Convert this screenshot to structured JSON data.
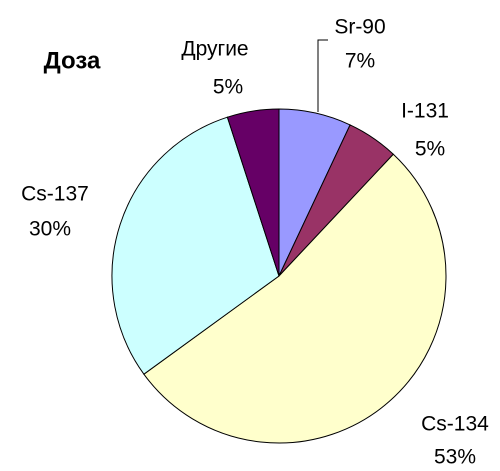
{
  "chart_data": {
    "type": "pie",
    "title": "Доза",
    "categories": [
      "Sr-90",
      "I-131",
      "Cs-134",
      "Cs-137",
      "Другие"
    ],
    "values": [
      7,
      5,
      53,
      30,
      5
    ],
    "value_labels": [
      "7%",
      "5%",
      "53%",
      "30%",
      "5%"
    ],
    "colors": [
      "#9999ff",
      "#993366",
      "#ffffcc",
      "#ccffff",
      "#660066"
    ]
  }
}
